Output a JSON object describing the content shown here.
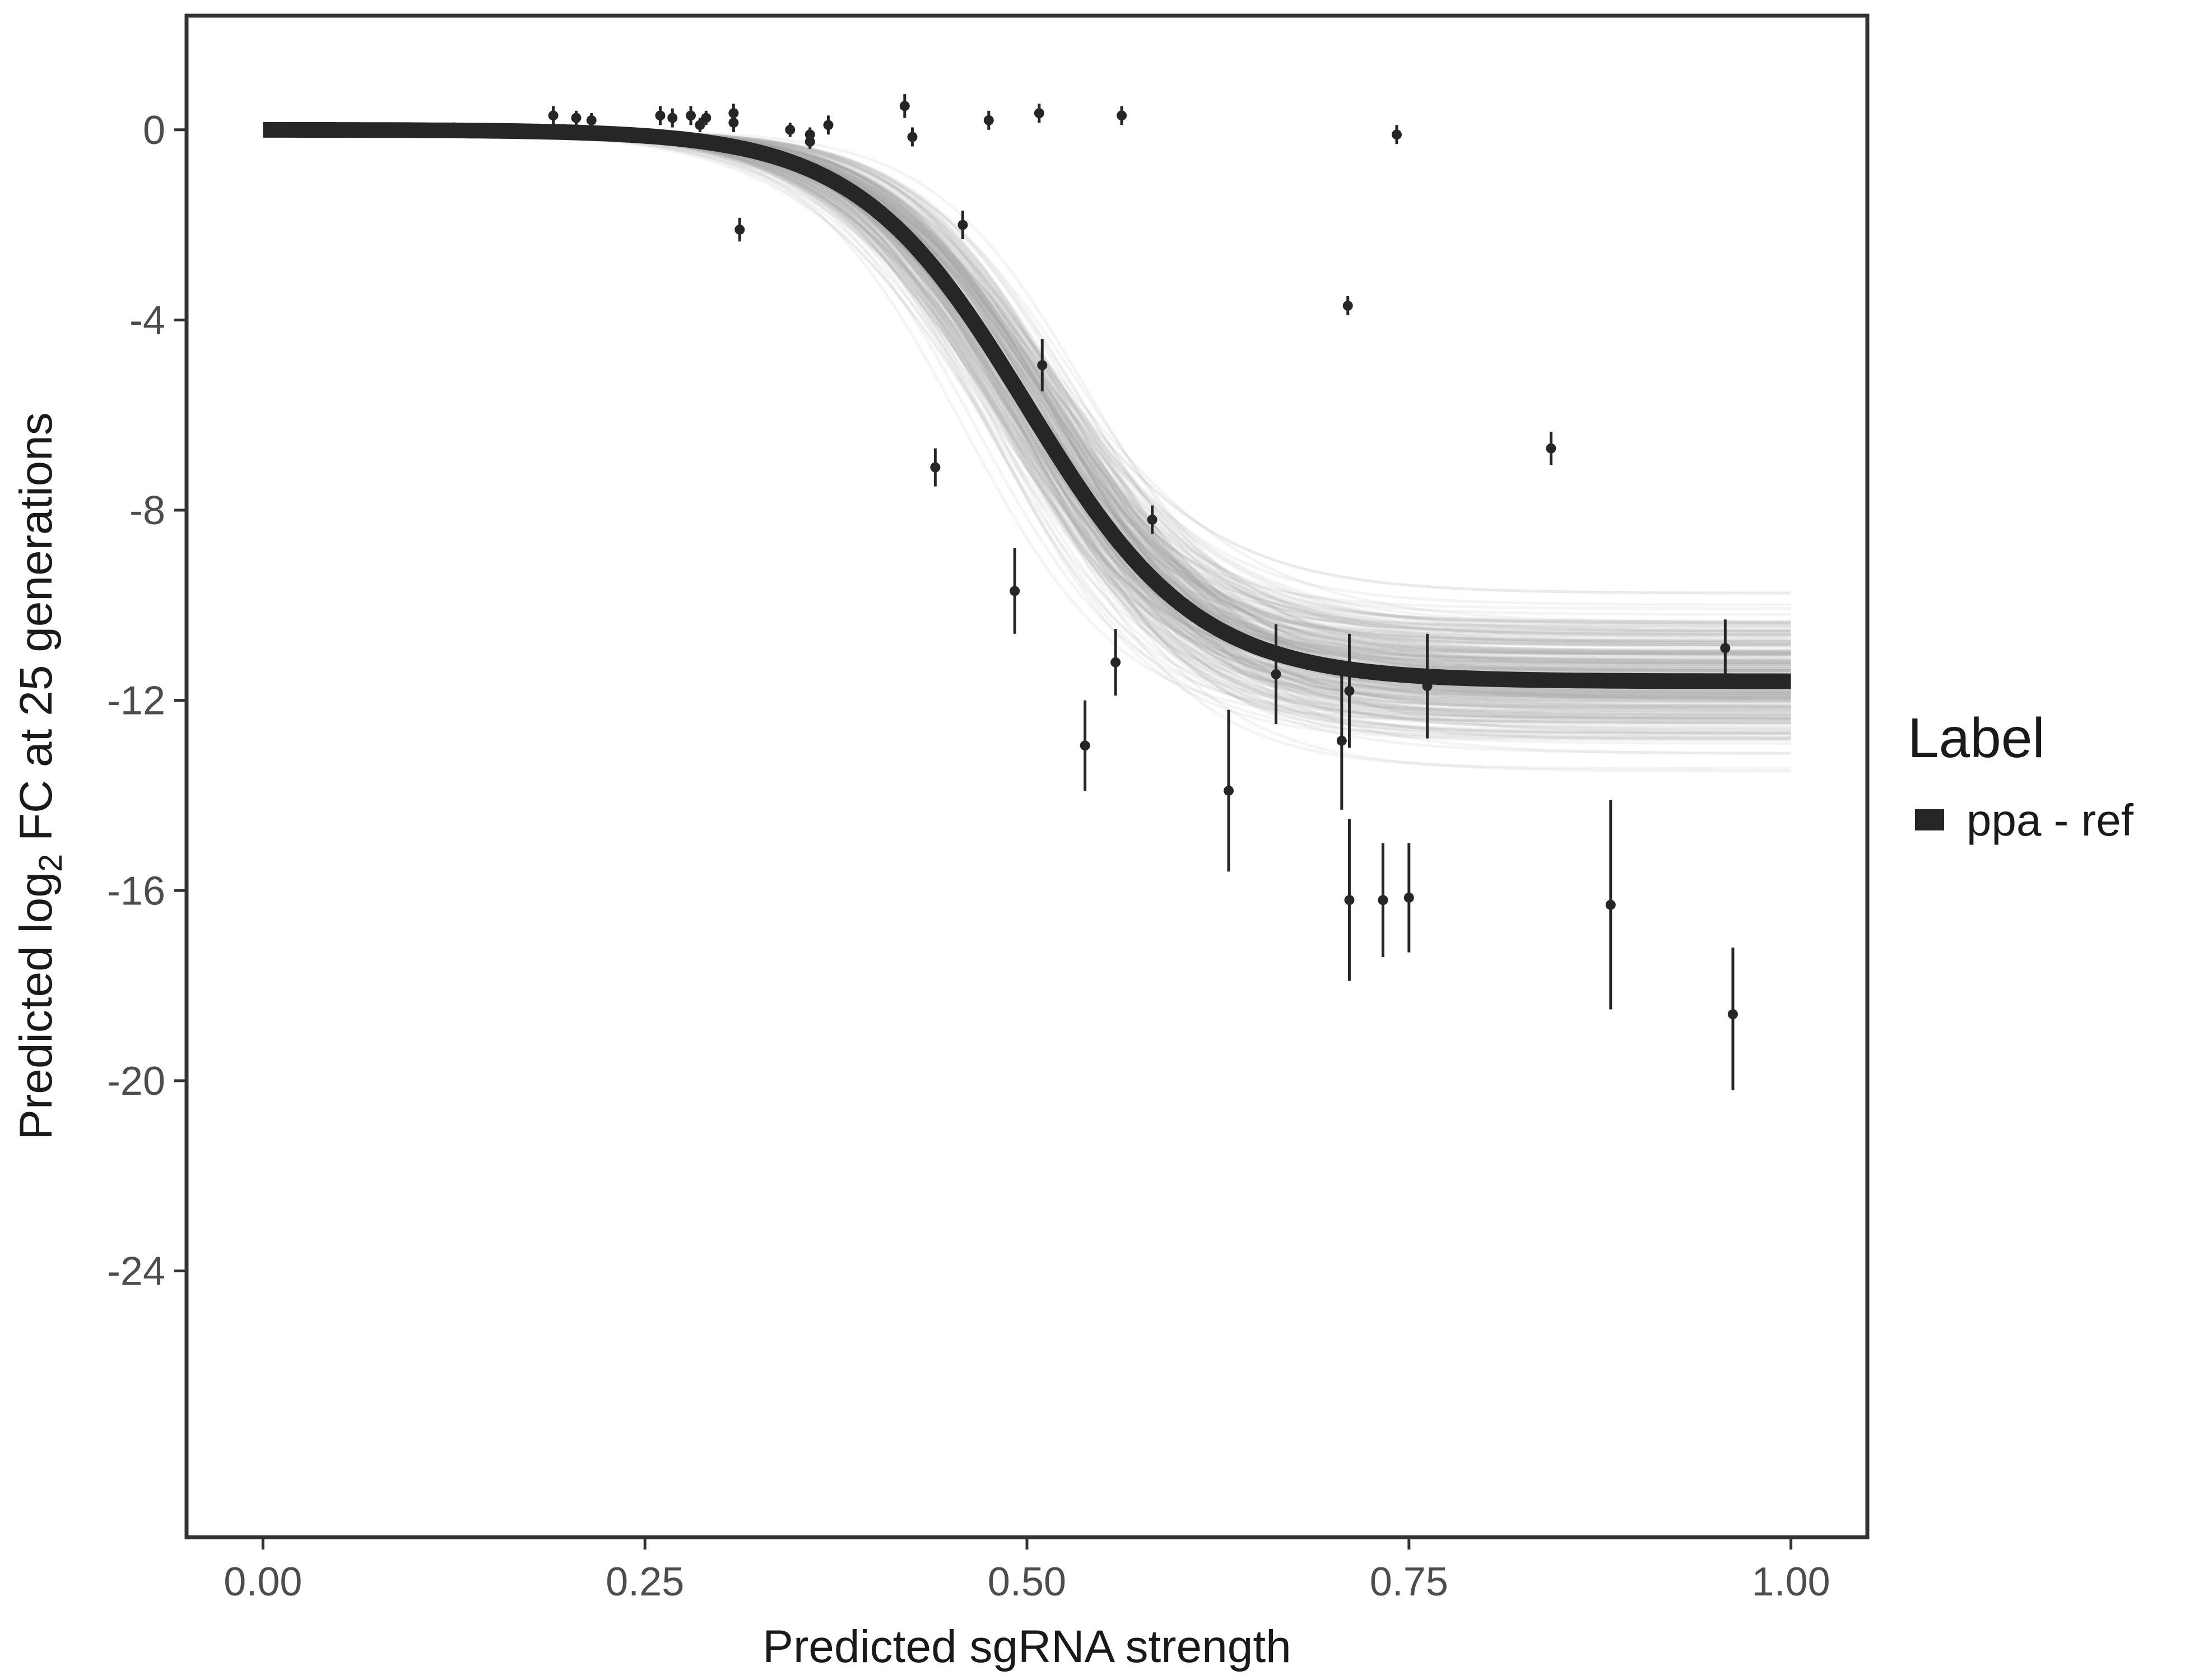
{
  "chart_data": {
    "type": "line",
    "xlabel": "Predicted sgRNA strength",
    "ylabel": {
      "prefix": "Predicted  log",
      "subscript": "2",
      "suffix": " FC at 25 generations"
    },
    "xlim": [
      -0.05,
      1.05
    ],
    "ylim": [
      -29.6,
      2.4
    ],
    "xticks": [
      0,
      0.25,
      0.5,
      0.75,
      1
    ],
    "xtick_labels": [
      "0.00",
      "0.25",
      "0.50",
      "0.75",
      "1.00"
    ],
    "yticks": [
      0,
      -4,
      -8,
      -12,
      -16,
      -20,
      -24
    ],
    "ytick_labels": [
      "0",
      "-4",
      "-8",
      "-12",
      "-16",
      "-20",
      "-24"
    ],
    "grid": false,
    "legend": {
      "title": "Label",
      "position": "right",
      "entries": [
        {
          "label": "ppa - ref",
          "color": "#262626"
        }
      ]
    },
    "fit_curve": {
      "name": "ppa - ref",
      "form": "logistic",
      "top": 0,
      "bottom": -11.6,
      "midpoint": 0.5,
      "slope": 18,
      "color": "#262626"
    },
    "posterior_curves": {
      "count": 260,
      "color": "#a8a8a8",
      "bottom_range": [
        -15.4,
        -7.8
      ],
      "midpoint_range": [
        0.42,
        0.58
      ],
      "slope_range": [
        12,
        24
      ]
    },
    "points": [
      {
        "x": 0.125,
        "y": 0.05,
        "lo": -0.05,
        "hi": 0.15
      },
      {
        "x": 0.19,
        "y": 0.3,
        "lo": 0.1,
        "hi": 0.5
      },
      {
        "x": 0.205,
        "y": 0.25,
        "lo": 0.1,
        "hi": 0.4
      },
      {
        "x": 0.215,
        "y": 0.2,
        "lo": 0.05,
        "hi": 0.35
      },
      {
        "x": 0.26,
        "y": 0.3,
        "lo": 0.1,
        "hi": 0.5
      },
      {
        "x": 0.268,
        "y": 0.25,
        "lo": 0.05,
        "hi": 0.45
      },
      {
        "x": 0.28,
        "y": 0.3,
        "lo": 0.1,
        "hi": 0.5
      },
      {
        "x": 0.286,
        "y": 0.1,
        "lo": -0.05,
        "hi": 0.25
      },
      {
        "x": 0.29,
        "y": 0.25,
        "lo": 0.1,
        "hi": 0.4
      },
      {
        "x": 0.308,
        "y": 0.35,
        "lo": 0.15,
        "hi": 0.55
      },
      {
        "x": 0.308,
        "y": 0.15,
        "lo": -0.05,
        "hi": 0.35
      },
      {
        "x": 0.312,
        "y": -2.1,
        "lo": -2.35,
        "hi": -1.85
      },
      {
        "x": 0.345,
        "y": 0.0,
        "lo": -0.15,
        "hi": 0.15
      },
      {
        "x": 0.358,
        "y": -0.1,
        "lo": -0.25,
        "hi": 0.05
      },
      {
        "x": 0.358,
        "y": -0.25,
        "lo": -0.4,
        "hi": -0.1
      },
      {
        "x": 0.37,
        "y": 0.1,
        "lo": -0.1,
        "hi": 0.3
      },
      {
        "x": 0.42,
        "y": 0.5,
        "lo": 0.25,
        "hi": 0.75
      },
      {
        "x": 0.425,
        "y": -0.15,
        "lo": -0.35,
        "hi": 0.05
      },
      {
        "x": 0.44,
        "y": -7.1,
        "lo": -7.5,
        "hi": -6.7
      },
      {
        "x": 0.458,
        "y": -2.0,
        "lo": -2.3,
        "hi": -1.7
      },
      {
        "x": 0.475,
        "y": 0.2,
        "lo": 0.0,
        "hi": 0.4
      },
      {
        "x": 0.492,
        "y": -9.7,
        "lo": -10.6,
        "hi": -8.8
      },
      {
        "x": 0.508,
        "y": 0.35,
        "lo": 0.15,
        "hi": 0.55
      },
      {
        "x": 0.51,
        "y": -4.95,
        "lo": -5.5,
        "hi": -4.4
      },
      {
        "x": 0.538,
        "y": -12.95,
        "lo": -13.9,
        "hi": -12.0
      },
      {
        "x": 0.558,
        "y": -11.2,
        "lo": -11.9,
        "hi": -10.5
      },
      {
        "x": 0.562,
        "y": 0.3,
        "lo": 0.1,
        "hi": 0.5
      },
      {
        "x": 0.582,
        "y": -8.2,
        "lo": -8.5,
        "hi": -7.9
      },
      {
        "x": 0.632,
        "y": -13.9,
        "lo": -15.6,
        "hi": -12.2
      },
      {
        "x": 0.663,
        "y": -11.45,
        "lo": -12.5,
        "hi": -10.4
      },
      {
        "x": 0.706,
        "y": -12.85,
        "lo": -14.3,
        "hi": -11.4
      },
      {
        "x": 0.71,
        "y": -3.7,
        "lo": -3.9,
        "hi": -3.5
      },
      {
        "x": 0.711,
        "y": -11.8,
        "lo": -13.0,
        "hi": -10.6
      },
      {
        "x": 0.711,
        "y": -16.2,
        "lo": -17.9,
        "hi": -14.5
      },
      {
        "x": 0.733,
        "y": -16.2,
        "lo": -17.4,
        "hi": -15.0
      },
      {
        "x": 0.742,
        "y": -0.1,
        "lo": -0.3,
        "hi": 0.1
      },
      {
        "x": 0.75,
        "y": -16.15,
        "lo": -17.3,
        "hi": -15.0
      },
      {
        "x": 0.762,
        "y": -11.7,
        "lo": -12.8,
        "hi": -10.6
      },
      {
        "x": 0.843,
        "y": -6.7,
        "lo": -7.05,
        "hi": -6.35
      },
      {
        "x": 0.882,
        "y": -16.3,
        "lo": -18.5,
        "hi": -14.1
      },
      {
        "x": 0.957,
        "y": -10.9,
        "lo": -11.5,
        "hi": -10.3
      },
      {
        "x": 0.962,
        "y": -18.6,
        "lo": -20.2,
        "hi": -17.2
      }
    ]
  }
}
